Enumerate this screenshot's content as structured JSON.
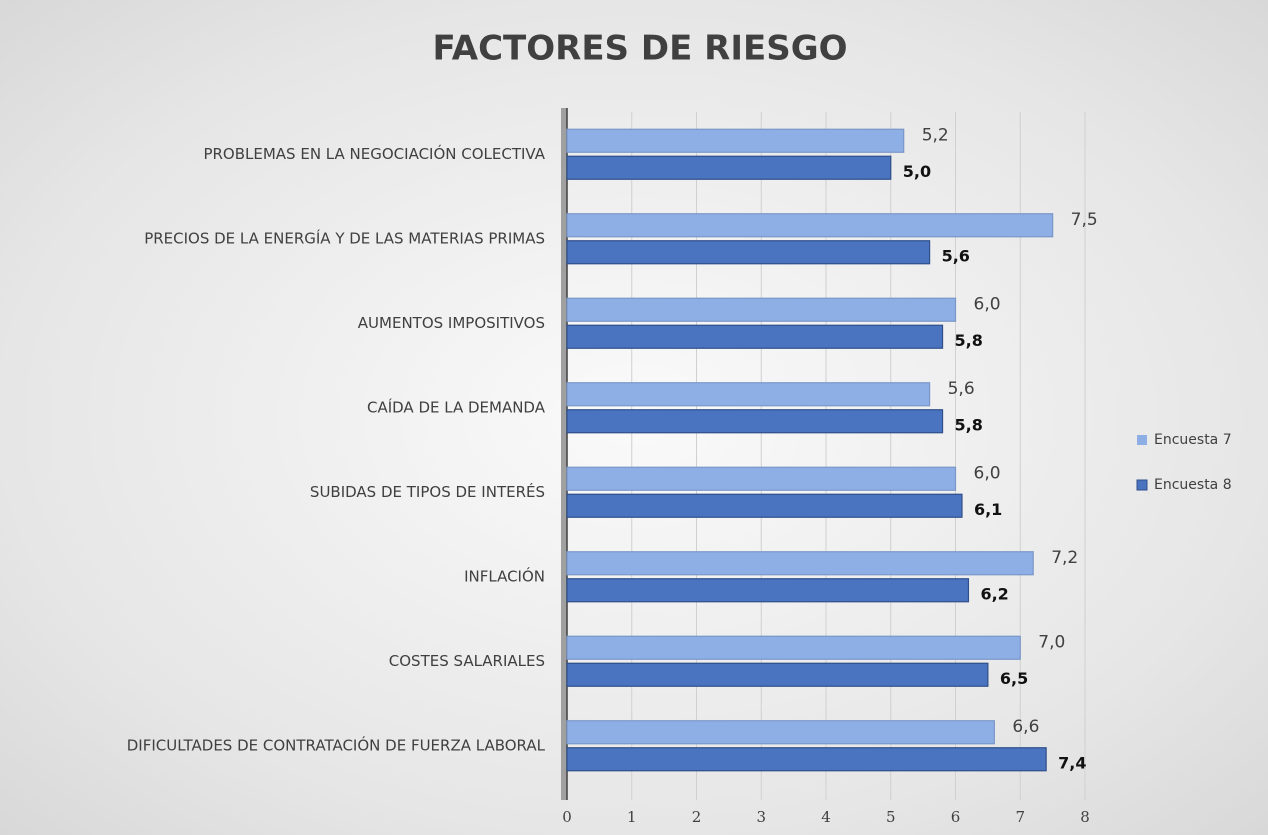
{
  "chart_data": {
    "type": "bar",
    "orientation": "horizontal",
    "title": "FACTORES DE RIESGO",
    "categories": [
      "PROBLEMAS EN LA NEGOCIACIÓN COLECTIVA",
      "PRECIOS DE LA ENERGÍA Y DE LAS MATERIAS PRIMAS",
      "AUMENTOS IMPOSITIVOS",
      "CAÍDA DE LA DEMANDA",
      "SUBIDAS DE TIPOS DE INTERÉS",
      "INFLACIÓN",
      "COSTES SALARIALES",
      "DIFICULTADES DE CONTRATACIÓN DE FUERZA LABORAL"
    ],
    "series": [
      {
        "name": "Encuesta 7",
        "color": "#8eaee6",
        "values": [
          5.2,
          7.5,
          6.0,
          5.6,
          6.0,
          7.2,
          7.0,
          6.6
        ],
        "value_labels": [
          "5,2",
          "7,5",
          "6,0",
          "5,6",
          "6,0",
          "7,2",
          "7,0",
          "6,6"
        ]
      },
      {
        "name": "Encuesta 8",
        "color": "#4a73c0",
        "values": [
          5.0,
          5.6,
          5.8,
          5.8,
          6.1,
          6.2,
          6.5,
          7.4
        ],
        "value_labels": [
          "5,0",
          "5,6",
          "5,8",
          "5,8",
          "6,1",
          "6,2",
          "6,5",
          "7,4"
        ]
      }
    ],
    "xlim": [
      0,
      8
    ],
    "xticks": [
      0,
      1,
      2,
      3,
      4,
      5,
      6,
      7,
      8
    ],
    "grid": true,
    "legend": "right"
  }
}
